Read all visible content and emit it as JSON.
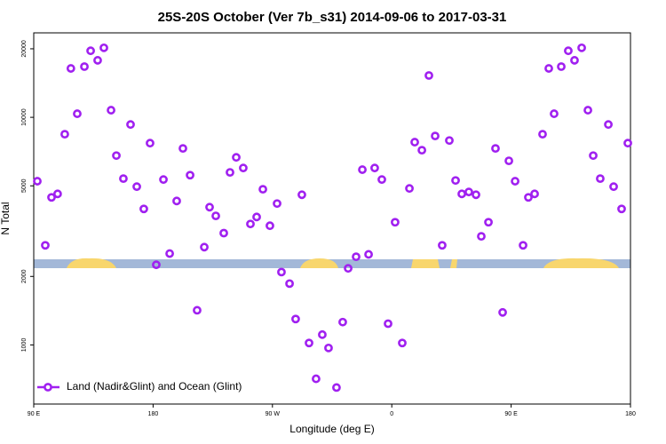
{
  "chart_data": {
    "type": "scatter",
    "title": "25S-20S October (Ver 7b_s31)   2014-09-06 to 2017-03-31",
    "x_label": "Longitude (deg E)",
    "y_label": "N Total",
    "y_log": true,
    "xlim": [
      90,
      540
    ],
    "ylim": [
      550,
      23500
    ],
    "xticks": [
      {
        "value": 90,
        "label": "90 E"
      },
      180,
      {
        "value": 270,
        "label": "90 W"
      },
      {
        "value": 360,
        "label": "0"
      },
      {
        "value": 450,
        "label": "90 E"
      },
      {
        "value": 540,
        "label": "180"
      }
    ],
    "yticks": [
      1000,
      2000,
      5000,
      10000,
      20000
    ],
    "legend": "bottom-left",
    "x": [
      92.7,
      98.7,
      103.4,
      108,
      113.4,
      118,
      122.8,
      128.2,
      132.9,
      138.2,
      142.9,
      148.3,
      152.3,
      157.6,
      163,
      167.7,
      173,
      177.7,
      182.4,
      187.8,
      192.5,
      197.8,
      202.5,
      207.9,
      213.2,
      218.6,
      222.6,
      227.3,
      233.3,
      238,
      242.7,
      248,
      253.4,
      258.1,
      262.8,
      268.1,
      273.5,
      276.8,
      282.9,
      287.5,
      292.2,
      297.6,
      302.9,
      307.6,
      312.3,
      318.3,
      323,
      327.1,
      333.1,
      337.8,
      342.5,
      347.1,
      352.5,
      357.2,
      362.5,
      367.9,
      373.3,
      377.3,
      382.7,
      388,
      392.7,
      398,
      403.4,
      408.1,
      412.8,
      418.1,
      423.5,
      427.5,
      432.9,
      438.2,
      443.6,
      448.3,
      453,
      459,
      463,
      467.7,
      473.7,
      478.4,
      482.4,
      487.8,
      493.1,
      497.8,
      503.2,
      507.9,
      511.9,
      517.2,
      523.3,
      527.3,
      533.3,
      538
    ],
    "series": [
      {
        "name": "Land (Nadir&Glint) and Ocean (Glint)",
        "color": "#a020f0",
        "values": [
          5240,
          2740,
          4450,
          4610,
          8430,
          16400,
          10370,
          16700,
          19600,
          17800,
          20200,
          10750,
          6790,
          5380,
          9300,
          4960,
          3960,
          7700,
          2250,
          5330,
          2520,
          4290,
          7300,
          5570,
          1420,
          2690,
          4030,
          3690,
          3100,
          5730,
          6670,
          5990,
          3400,
          3650,
          4830,
          3340,
          4180,
          2090,
          1860,
          1300,
          4570,
          1020,
          710,
          1110,
          970,
          650,
          1260,
          2170,
          2440,
          5890,
          2500,
          5990,
          5330,
          1240,
          3460,
          1020,
          4870,
          7780,
          7170,
          15270,
          8280,
          2740,
          7910,
          5280,
          4610,
          4700,
          4570,
          3000,
          3460,
          7300,
          1390,
          6440,
          5240,
          2740,
          4450,
          4610,
          8430,
          16400,
          10370,
          16700,
          19600,
          17800,
          20200,
          10750,
          6790,
          5380,
          9300,
          4960,
          3960,
          7700
        ]
      }
    ]
  }
}
